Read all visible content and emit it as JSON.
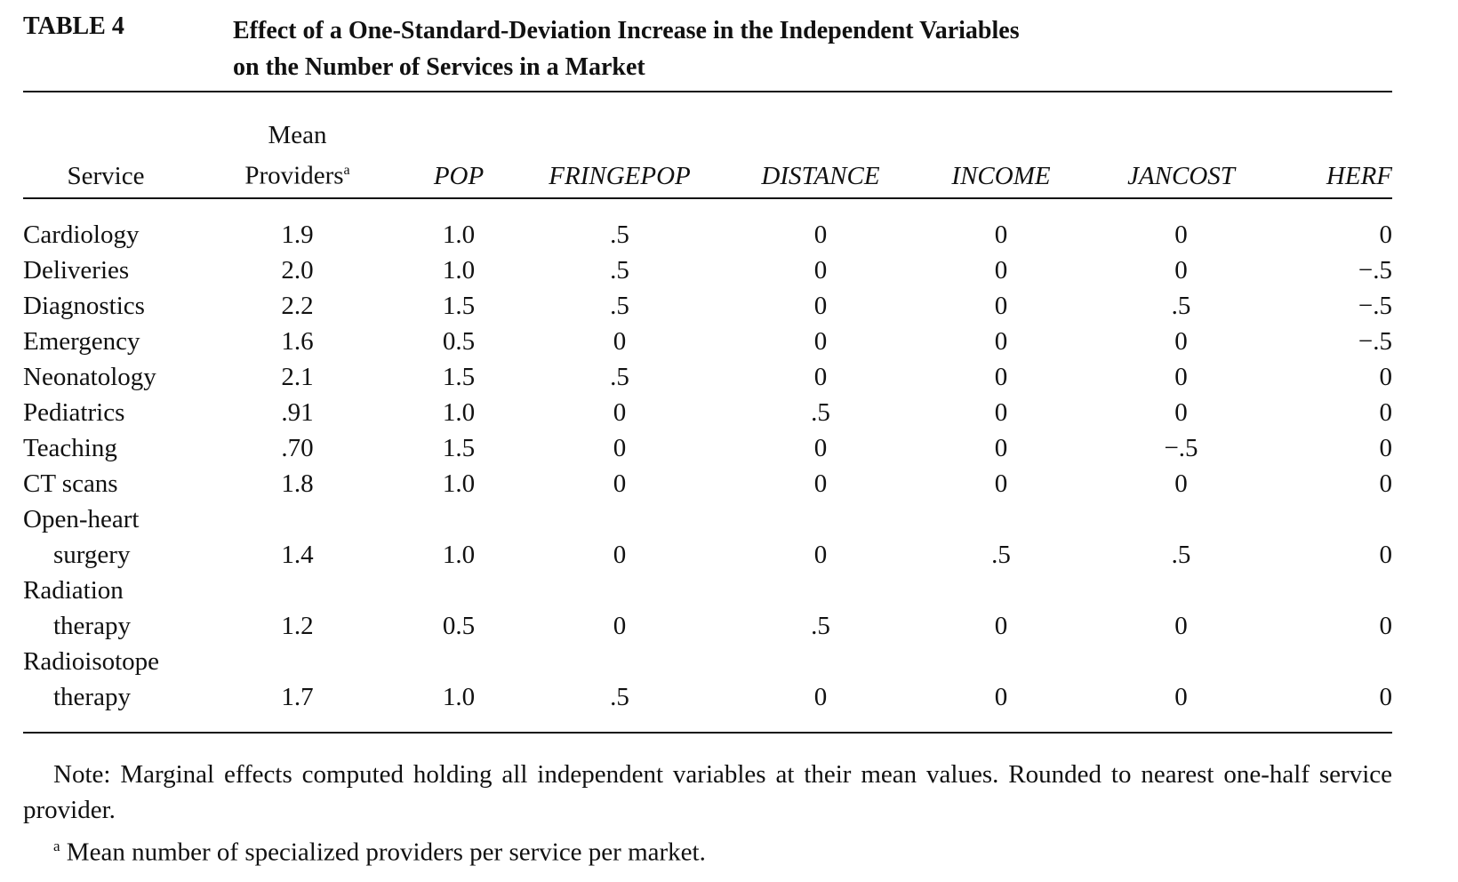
{
  "table_label": "TABLE 4",
  "title_line1": "Effect of a One-Standard-Deviation Increase in the Independent Variables",
  "title_line2": "on the Number of Services in a Market",
  "columns": {
    "service": "Service",
    "mean_line1": "Mean",
    "mean_line2": "Providers",
    "mean_sup": "a",
    "pop": "POP",
    "fringepop": "FRINGEPOP",
    "distance": "DISTANCE",
    "income": "INCOME",
    "jancost": "JANCOST",
    "herf": "HERF"
  },
  "rows": [
    {
      "service": "Cardiology",
      "service2": "",
      "mean": "1.9",
      "pop": "1.0",
      "fringepop": ".5",
      "distance": "0",
      "income": "0",
      "jancost": "0",
      "herf": "0"
    },
    {
      "service": "Deliveries",
      "service2": "",
      "mean": "2.0",
      "pop": "1.0",
      "fringepop": ".5",
      "distance": "0",
      "income": "0",
      "jancost": "0",
      "herf": "−.5"
    },
    {
      "service": "Diagnostics",
      "service2": "",
      "mean": "2.2",
      "pop": "1.5",
      "fringepop": ".5",
      "distance": "0",
      "income": "0",
      "jancost": ".5",
      "herf": "−.5"
    },
    {
      "service": "Emergency",
      "service2": "",
      "mean": "1.6",
      "pop": "0.5",
      "fringepop": "0",
      "distance": "0",
      "income": "0",
      "jancost": "0",
      "herf": "−.5"
    },
    {
      "service": "Neonatology",
      "service2": "",
      "mean": "2.1",
      "pop": "1.5",
      "fringepop": ".5",
      "distance": "0",
      "income": "0",
      "jancost": "0",
      "herf": "0"
    },
    {
      "service": "Pediatrics",
      "service2": "",
      "mean": ".91",
      "pop": "1.0",
      "fringepop": "0",
      "distance": ".5",
      "income": "0",
      "jancost": "0",
      "herf": "0"
    },
    {
      "service": "Teaching",
      "service2": "",
      "mean": ".70",
      "pop": "1.5",
      "fringepop": "0",
      "distance": "0",
      "income": "0",
      "jancost": "−.5",
      "herf": "0"
    },
    {
      "service": "CT scans",
      "service2": "",
      "mean": "1.8",
      "pop": "1.0",
      "fringepop": "0",
      "distance": "0",
      "income": "0",
      "jancost": "0",
      "herf": "0"
    },
    {
      "service": "Open-heart",
      "service2": "surgery",
      "mean": "1.4",
      "pop": "1.0",
      "fringepop": "0",
      "distance": "0",
      "income": ".5",
      "jancost": ".5",
      "herf": "0"
    },
    {
      "service": "Radiation",
      "service2": "therapy",
      "mean": "1.2",
      "pop": "0.5",
      "fringepop": "0",
      "distance": ".5",
      "income": "0",
      "jancost": "0",
      "herf": "0"
    },
    {
      "service": "Radioisotope",
      "service2": "therapy",
      "mean": "1.7",
      "pop": "1.0",
      "fringepop": ".5",
      "distance": "0",
      "income": "0",
      "jancost": "0",
      "herf": "0"
    }
  ],
  "note": "Note: Marginal effects computed holding all independent variables at their mean values. Rounded to nearest one-half service provider.",
  "footnote_marker": "a",
  "footnote": " Mean number of specialized providers per service per market."
}
